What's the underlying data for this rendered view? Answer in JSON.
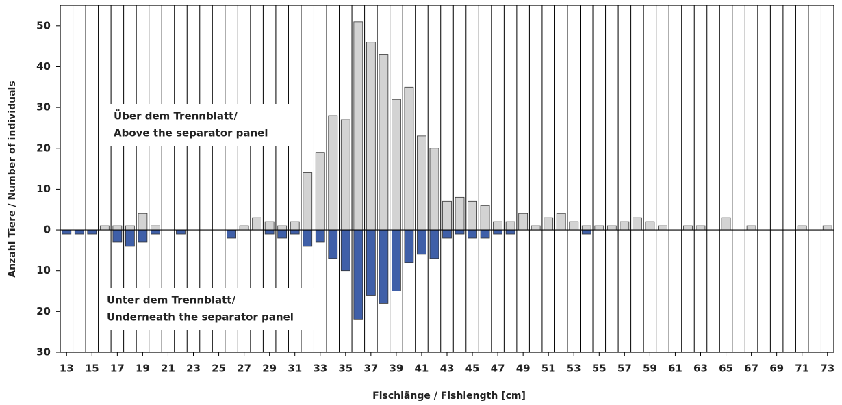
{
  "chart_data": {
    "type": "diverging_bar",
    "x_label": "Fischlänge / Fishlength [cm]",
    "y_label": "Anzahl Tiere / Number of individuals",
    "x": [
      13,
      14,
      15,
      16,
      17,
      18,
      19,
      20,
      21,
      22,
      23,
      24,
      25,
      26,
      27,
      28,
      29,
      30,
      31,
      32,
      33,
      34,
      35,
      36,
      37,
      38,
      39,
      40,
      41,
      42,
      43,
      44,
      45,
      46,
      47,
      48,
      49,
      50,
      51,
      52,
      53,
      54,
      55,
      56,
      57,
      58,
      59,
      60,
      61,
      62,
      63,
      64,
      65,
      66,
      67,
      68,
      69,
      70,
      71,
      72,
      73
    ],
    "xlim": [
      12.5,
      73.5
    ],
    "xticks": [
      13,
      15,
      17,
      19,
      21,
      23,
      25,
      27,
      29,
      31,
      33,
      35,
      37,
      39,
      41,
      43,
      45,
      47,
      49,
      51,
      53,
      55,
      57,
      59,
      61,
      63,
      65,
      67,
      69,
      71,
      73
    ],
    "ylim": [
      -30,
      55
    ],
    "yticks": [
      50,
      40,
      30,
      20,
      10,
      0,
      {
        "value": -10,
        "label": "10"
      },
      {
        "value": -20,
        "label": "20"
      },
      {
        "value": -30,
        "label": "30"
      }
    ],
    "series": [
      {
        "color": "#d3d3d3",
        "values": [
          0,
          0,
          0,
          1,
          1,
          1,
          4,
          1,
          0,
          0,
          0,
          0,
          0,
          0,
          1,
          3,
          2,
          1,
          2,
          14,
          19,
          28,
          27,
          51,
          46,
          43,
          32,
          35,
          23,
          20,
          7,
          8,
          7,
          6,
          2,
          2,
          4,
          1,
          3,
          4,
          2,
          1,
          1,
          1,
          2,
          3,
          2,
          1,
          0,
          1,
          1,
          0,
          3,
          0,
          1,
          0,
          0,
          0,
          1,
          0,
          1
        ]
      },
      {
        "color": "#3f5fa8",
        "values": [
          -1,
          -1,
          -1,
          0,
          -3,
          -4,
          -3,
          -1,
          0,
          -1,
          0,
          0,
          0,
          -2,
          0,
          0,
          -1,
          -2,
          -1,
          -4,
          -3,
          -7,
          -10,
          -22,
          -16,
          -18,
          -15,
          -8,
          -6,
          -7,
          -2,
          -1,
          -2,
          -2,
          -1,
          -1,
          0,
          0,
          0,
          0,
          0,
          -1,
          0,
          0,
          0,
          0,
          0,
          0,
          0,
          0,
          0,
          0,
          0,
          0,
          0,
          0,
          0,
          0,
          0,
          0,
          0
        ]
      }
    ],
    "annotations": [
      {
        "lines": [
          "Über dem Trennblatt/",
          "Above the separator panel"
        ]
      },
      {
        "lines": [
          "Unter dem Trennblatt/",
          "Underneath the separator panel"
        ]
      }
    ]
  }
}
